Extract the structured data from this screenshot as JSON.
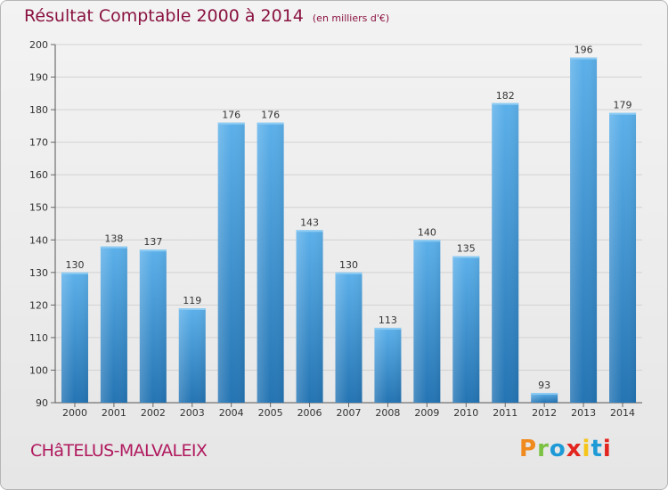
{
  "header": {
    "title": "Résultat Comptable 2000 à 2014",
    "unit": "(en milliers d'€)"
  },
  "commune": "CHâTELUS-MALVALEIX",
  "logo": {
    "text": "Proxiti"
  },
  "colors": {
    "title": "#8a1240",
    "commune": "#b0195e",
    "bar_light": "#5cb0ea",
    "bar_dark": "#2474b3",
    "grid": "#cfcfcf"
  },
  "chart_data": {
    "type": "bar",
    "title": "Résultat Comptable 2000 à 2014",
    "ylabel": "(en milliers d'€)",
    "xlabel": "",
    "categories": [
      "2000",
      "2001",
      "2002",
      "2003",
      "2004",
      "2005",
      "2006",
      "2007",
      "2008",
      "2009",
      "2010",
      "2011",
      "2012",
      "2013",
      "2014"
    ],
    "values": [
      130,
      138,
      137,
      119,
      176,
      176,
      143,
      130,
      113,
      140,
      135,
      182,
      93,
      196,
      179
    ],
    "ylim": [
      90,
      200
    ],
    "yticks": [
      90,
      100,
      110,
      120,
      130,
      140,
      150,
      160,
      170,
      180,
      190,
      200
    ],
    "grid": true,
    "legend": "none"
  }
}
